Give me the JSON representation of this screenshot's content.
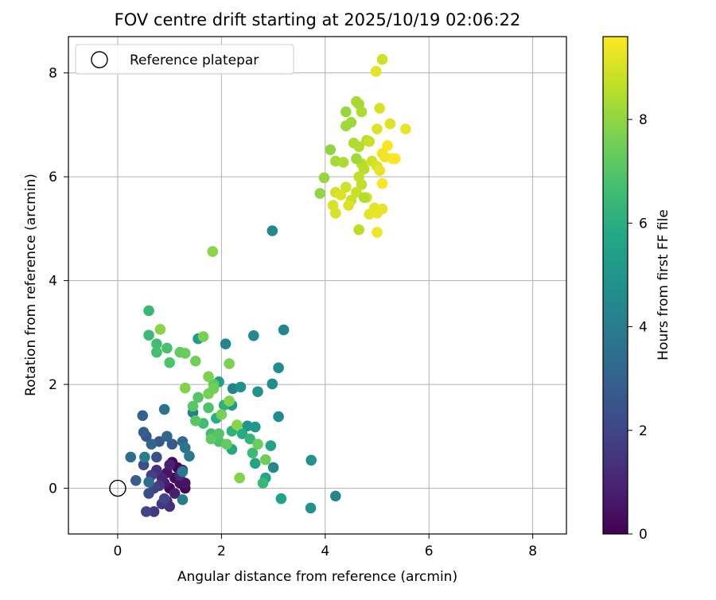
{
  "chart_data": {
    "type": "scatter",
    "title": "FOV centre drift starting at 2025/10/19 02:06:22",
    "xlabel": "Angular distance from reference (arcmin)",
    "ylabel": "Rotation from reference (arcmin)",
    "xlim": [
      -0.95,
      8.65
    ],
    "ylim": [
      -0.88,
      8.7
    ],
    "xticks": [
      0,
      2,
      4,
      6,
      8
    ],
    "yticks": [
      0,
      2,
      4,
      6,
      8
    ],
    "grid": true,
    "legend": {
      "placement": "top-left",
      "label": "Reference platepar",
      "marker": "hollow-circle"
    },
    "reference_point": {
      "x": 0,
      "y": 0
    },
    "colorbar": {
      "label": "Hours from first FF file",
      "range": [
        0,
        9.6
      ],
      "ticks": [
        0,
        2,
        4,
        6,
        8
      ],
      "colormap": "viridis"
    },
    "points": [
      {
        "x": 1.0,
        "y": 0.0,
        "h": 0.2
      },
      {
        "x": 1.1,
        "y": 0.2,
        "h": 0.3
      },
      {
        "x": 1.15,
        "y": 0.4,
        "h": 0.1
      },
      {
        "x": 1.2,
        "y": 0.1,
        "h": 0.4
      },
      {
        "x": 1.3,
        "y": 0.0,
        "h": 0.2
      },
      {
        "x": 1.05,
        "y": 0.5,
        "h": 0.3
      },
      {
        "x": 0.95,
        "y": 0.3,
        "h": 0.5
      },
      {
        "x": 1.25,
        "y": 0.35,
        "h": 0.6
      },
      {
        "x": 0.9,
        "y": 0.1,
        "h": 0.7
      },
      {
        "x": 1.1,
        "y": -0.1,
        "h": 0.8
      },
      {
        "x": 1.3,
        "y": 0.1,
        "h": 0.5
      },
      {
        "x": 1.0,
        "y": 0.45,
        "h": 0.9
      },
      {
        "x": 0.85,
        "y": 0.2,
        "h": 1.0
      },
      {
        "x": 1.2,
        "y": 0.25,
        "h": 1.1
      },
      {
        "x": 0.95,
        "y": -0.25,
        "h": 1.2
      },
      {
        "x": 1.0,
        "y": -0.35,
        "h": 1.3
      },
      {
        "x": 0.75,
        "y": 0.35,
        "h": 1.4
      },
      {
        "x": 0.7,
        "y": -0.45,
        "h": 1.5
      },
      {
        "x": 0.85,
        "y": -0.3,
        "h": 1.6
      },
      {
        "x": 0.8,
        "y": 0.05,
        "h": 1.7
      },
      {
        "x": 0.65,
        "y": 0.25,
        "h": 1.8
      },
      {
        "x": 0.7,
        "y": 0.0,
        "h": 1.9
      },
      {
        "x": 0.55,
        "y": -0.45,
        "h": 2.0
      },
      {
        "x": 0.9,
        "y": -0.2,
        "h": 2.1
      },
      {
        "x": 0.6,
        "y": -0.1,
        "h": 2.2
      },
      {
        "x": 0.5,
        "y": 0.45,
        "h": 2.3
      },
      {
        "x": 0.75,
        "y": 0.6,
        "h": 2.4
      },
      {
        "x": 0.55,
        "y": 1.0,
        "h": 2.5
      },
      {
        "x": 0.8,
        "y": 0.9,
        "h": 2.6
      },
      {
        "x": 1.05,
        "y": 0.85,
        "h": 2.7
      },
      {
        "x": 0.35,
        "y": 0.15,
        "h": 2.8
      },
      {
        "x": 0.5,
        "y": 1.08,
        "h": 2.9
      },
      {
        "x": 0.48,
        "y": 1.4,
        "h": 3.0
      },
      {
        "x": 0.65,
        "y": 0.85,
        "h": 3.1
      },
      {
        "x": 0.95,
        "y": 1.0,
        "h": 3.2
      },
      {
        "x": 1.25,
        "y": 0.9,
        "h": 3.3
      },
      {
        "x": 0.25,
        "y": 0.6,
        "h": 3.4
      },
      {
        "x": 0.6,
        "y": 0.12,
        "h": 3.5
      },
      {
        "x": 0.9,
        "y": 1.52,
        "h": 3.6
      },
      {
        "x": 1.3,
        "y": 0.78,
        "h": 3.7
      },
      {
        "x": 1.38,
        "y": 0.62,
        "h": 3.8
      },
      {
        "x": 1.25,
        "y": 0.32,
        "h": 3.9
      },
      {
        "x": 1.25,
        "y": -0.22,
        "h": 4.0
      },
      {
        "x": 0.52,
        "y": 0.6,
        "h": 4.1
      },
      {
        "x": 1.45,
        "y": 1.46,
        "h": 4.2
      },
      {
        "x": 2.08,
        "y": 2.78,
        "h": 4.3
      },
      {
        "x": 3.2,
        "y": 3.05,
        "h": 4.4
      },
      {
        "x": 2.62,
        "y": 2.94,
        "h": 4.5
      },
      {
        "x": 2.98,
        "y": 4.96,
        "h": 4.5
      },
      {
        "x": 3.1,
        "y": 2.32,
        "h": 4.6
      },
      {
        "x": 2.98,
        "y": 2.01,
        "h": 4.7
      },
      {
        "x": 2.22,
        "y": 1.92,
        "h": 4.3
      },
      {
        "x": 2.7,
        "y": 1.86,
        "h": 4.8
      },
      {
        "x": 2.37,
        "y": 1.95,
        "h": 4.9
      },
      {
        "x": 3.1,
        "y": 1.38,
        "h": 4.6
      },
      {
        "x": 3.73,
        "y": 0.54,
        "h": 4.9
      },
      {
        "x": 3.72,
        "y": -0.38,
        "h": 4.9
      },
      {
        "x": 4.2,
        "y": -0.15,
        "h": 4.4
      },
      {
        "x": 3.0,
        "y": 0.4,
        "h": 4.5
      },
      {
        "x": 2.5,
        "y": 1.2,
        "h": 5.0
      },
      {
        "x": 2.65,
        "y": 1.18,
        "h": 5.1
      },
      {
        "x": 2.2,
        "y": 1.6,
        "h": 5.2
      },
      {
        "x": 1.55,
        "y": 2.88,
        "h": 5.3
      },
      {
        "x": 1.95,
        "y": 2.05,
        "h": 5.4
      },
      {
        "x": 3.15,
        "y": -0.2,
        "h": 5.5
      },
      {
        "x": 2.95,
        "y": 0.82,
        "h": 5.5
      },
      {
        "x": 2.65,
        "y": 0.48,
        "h": 5.6
      },
      {
        "x": 2.85,
        "y": 0.2,
        "h": 5.7
      },
      {
        "x": 2.2,
        "y": 0.75,
        "h": 5.8
      },
      {
        "x": 2.4,
        "y": 1.05,
        "h": 5.9
      },
      {
        "x": 1.9,
        "y": 1.35,
        "h": 6.0
      },
      {
        "x": 2.05,
        "y": 1.6,
        "h": 6.1
      },
      {
        "x": 2.2,
        "y": 1.1,
        "h": 6.2
      },
      {
        "x": 2.55,
        "y": 0.95,
        "h": 6.3
      },
      {
        "x": 2.8,
        "y": 0.1,
        "h": 6.4
      },
      {
        "x": 2.6,
        "y": 0.68,
        "h": 6.5
      },
      {
        "x": 1.65,
        "y": 1.25,
        "h": 6.6
      },
      {
        "x": 1.8,
        "y": 1.05,
        "h": 6.7
      },
      {
        "x": 1.95,
        "y": 0.9,
        "h": 6.8
      },
      {
        "x": 1.75,
        "y": 1.55,
        "h": 6.9
      },
      {
        "x": 1.55,
        "y": 1.75,
        "h": 7.0
      },
      {
        "x": 1.45,
        "y": 1.58,
        "h": 7.1
      },
      {
        "x": 1.8,
        "y": 0.95,
        "h": 7.2
      },
      {
        "x": 2.1,
        "y": 0.85,
        "h": 7.3
      },
      {
        "x": 2.7,
        "y": 0.85,
        "h": 7.4
      },
      {
        "x": 2.85,
        "y": 0.55,
        "h": 7.5
      },
      {
        "x": 2.0,
        "y": 1.42,
        "h": 7.6
      },
      {
        "x": 1.95,
        "y": 1.05,
        "h": 7.0
      },
      {
        "x": 1.5,
        "y": 1.3,
        "h": 7.1
      },
      {
        "x": 1.85,
        "y": 2.0,
        "h": 7.2
      },
      {
        "x": 0.6,
        "y": 3.42,
        "h": 6.4
      },
      {
        "x": 0.6,
        "y": 2.95,
        "h": 6.5
      },
      {
        "x": 0.75,
        "y": 2.78,
        "h": 6.6
      },
      {
        "x": 0.75,
        "y": 2.62,
        "h": 6.7
      },
      {
        "x": 0.95,
        "y": 2.7,
        "h": 6.8
      },
      {
        "x": 1.0,
        "y": 2.42,
        "h": 6.9
      },
      {
        "x": 1.2,
        "y": 2.62,
        "h": 7.3
      },
      {
        "x": 1.3,
        "y": 2.6,
        "h": 7.4
      },
      {
        "x": 1.5,
        "y": 2.45,
        "h": 7.5
      },
      {
        "x": 1.65,
        "y": 2.92,
        "h": 7.6
      },
      {
        "x": 2.15,
        "y": 2.4,
        "h": 7.7
      },
      {
        "x": 1.3,
        "y": 1.93,
        "h": 7.8
      },
      {
        "x": 1.75,
        "y": 2.15,
        "h": 7.7
      },
      {
        "x": 1.75,
        "y": 1.82,
        "h": 7.6
      },
      {
        "x": 1.85,
        "y": 1.92,
        "h": 7.5
      },
      {
        "x": 2.15,
        "y": 1.68,
        "h": 7.8
      },
      {
        "x": 2.3,
        "y": 1.22,
        "h": 7.9
      },
      {
        "x": 2.35,
        "y": 0.2,
        "h": 7.8
      },
      {
        "x": 0.82,
        "y": 3.06,
        "h": 7.9
      },
      {
        "x": 1.83,
        "y": 4.56,
        "h": 7.9
      },
      {
        "x": 4.1,
        "y": 6.52,
        "h": 8.0
      },
      {
        "x": 3.9,
        "y": 5.68,
        "h": 8.0
      },
      {
        "x": 3.98,
        "y": 5.98,
        "h": 8.1
      },
      {
        "x": 4.4,
        "y": 7.25,
        "h": 8.1
      },
      {
        "x": 4.4,
        "y": 6.98,
        "h": 8.2
      },
      {
        "x": 4.5,
        "y": 7.05,
        "h": 8.2
      },
      {
        "x": 4.6,
        "y": 7.45,
        "h": 8.3
      },
      {
        "x": 4.65,
        "y": 7.4,
        "h": 8.3
      },
      {
        "x": 4.7,
        "y": 7.25,
        "h": 8.4
      },
      {
        "x": 4.55,
        "y": 6.65,
        "h": 8.4
      },
      {
        "x": 4.65,
        "y": 6.58,
        "h": 8.5
      },
      {
        "x": 4.8,
        "y": 6.7,
        "h": 8.5
      },
      {
        "x": 4.7,
        "y": 6.25,
        "h": 8.6
      },
      {
        "x": 4.75,
        "y": 6.15,
        "h": 8.6
      },
      {
        "x": 4.65,
        "y": 6.0,
        "h": 8.7
      },
      {
        "x": 4.7,
        "y": 5.85,
        "h": 8.7
      },
      {
        "x": 4.6,
        "y": 5.7,
        "h": 8.8
      },
      {
        "x": 4.5,
        "y": 5.55,
        "h": 8.8
      },
      {
        "x": 4.4,
        "y": 5.8,
        "h": 8.9
      },
      {
        "x": 4.2,
        "y": 5.7,
        "h": 8.9
      },
      {
        "x": 4.15,
        "y": 5.45,
        "h": 9.0
      },
      {
        "x": 4.2,
        "y": 5.3,
        "h": 9.0
      },
      {
        "x": 4.3,
        "y": 5.65,
        "h": 9.1
      },
      {
        "x": 4.45,
        "y": 5.45,
        "h": 9.1
      },
      {
        "x": 4.65,
        "y": 4.98,
        "h": 8.6
      },
      {
        "x": 4.2,
        "y": 6.3,
        "h": 8.3
      },
      {
        "x": 4.35,
        "y": 6.28,
        "h": 8.4
      },
      {
        "x": 4.85,
        "y": 6.68,
        "h": 8.8
      },
      {
        "x": 4.9,
        "y": 6.3,
        "h": 8.9
      },
      {
        "x": 5.0,
        "y": 6.2,
        "h": 9.0
      },
      {
        "x": 4.8,
        "y": 5.6,
        "h": 9.0
      },
      {
        "x": 4.85,
        "y": 5.28,
        "h": 9.2
      },
      {
        "x": 4.95,
        "y": 5.4,
        "h": 9.2
      },
      {
        "x": 5.0,
        "y": 5.3,
        "h": 9.3
      },
      {
        "x": 5.1,
        "y": 5.38,
        "h": 9.3
      },
      {
        "x": 5.0,
        "y": 4.93,
        "h": 9.4
      },
      {
        "x": 5.05,
        "y": 6.12,
        "h": 9.3
      },
      {
        "x": 5.1,
        "y": 6.45,
        "h": 9.4
      },
      {
        "x": 5.15,
        "y": 6.38,
        "h": 9.4
      },
      {
        "x": 5.2,
        "y": 6.6,
        "h": 9.5
      },
      {
        "x": 5.3,
        "y": 6.35,
        "h": 9.5
      },
      {
        "x": 5.35,
        "y": 6.35,
        "h": 9.6
      },
      {
        "x": 5.1,
        "y": 5.87,
        "h": 9.5
      },
      {
        "x": 5.0,
        "y": 6.92,
        "h": 9.1
      },
      {
        "x": 5.05,
        "y": 7.32,
        "h": 9.0
      },
      {
        "x": 5.25,
        "y": 7.02,
        "h": 9.1
      },
      {
        "x": 5.55,
        "y": 6.92,
        "h": 9.3
      },
      {
        "x": 4.98,
        "y": 8.03,
        "h": 9.2
      },
      {
        "x": 5.1,
        "y": 8.26,
        "h": 8.9
      },
      {
        "x": 4.6,
        "y": 6.35,
        "h": 8.2
      },
      {
        "x": 4.75,
        "y": 5.6,
        "h": 8.5
      }
    ]
  }
}
